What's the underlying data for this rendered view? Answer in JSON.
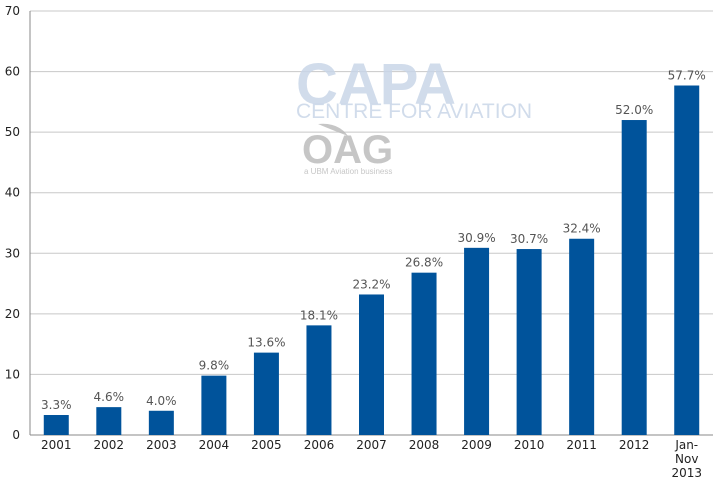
{
  "chart_data": {
    "type": "bar",
    "categories": [
      "2001",
      "2002",
      "2003",
      "2004",
      "2005",
      "2006",
      "2007",
      "2008",
      "2009",
      "2010",
      "2011",
      "2012",
      "Jan-Nov 2013"
    ],
    "category_lines": [
      [
        "2001"
      ],
      [
        "2002"
      ],
      [
        "2003"
      ],
      [
        "2004"
      ],
      [
        "2005"
      ],
      [
        "2006"
      ],
      [
        "2007"
      ],
      [
        "2008"
      ],
      [
        "2009"
      ],
      [
        "2010"
      ],
      [
        "2011"
      ],
      [
        "2012"
      ],
      [
        "Jan-",
        "Nov",
        "2013"
      ]
    ],
    "values": [
      3.3,
      4.6,
      4.0,
      9.8,
      13.6,
      18.1,
      23.2,
      26.8,
      30.9,
      30.7,
      32.4,
      52.0,
      57.7
    ],
    "data_labels": [
      "3.3%",
      "4.6%",
      "4.0%",
      "9.8%",
      "13.6%",
      "18.1%",
      "23.2%",
      "26.8%",
      "30.9%",
      "30.7%",
      "32.4%",
      "52.0%",
      "57.7%"
    ],
    "yticks": [
      0,
      10,
      20,
      30,
      40,
      50,
      60,
      70
    ],
    "ylim": [
      0,
      70
    ],
    "grid": true,
    "legend": "none",
    "colors": {
      "bar": "#00539b",
      "grid": "#c8c8c8",
      "axis": "#888888"
    }
  },
  "watermark": {
    "capa": "CAPA",
    "centre": "CENTRE FOR AVIATION",
    "oag": "OAG",
    "ubm": "a UBM Aviation business"
  }
}
